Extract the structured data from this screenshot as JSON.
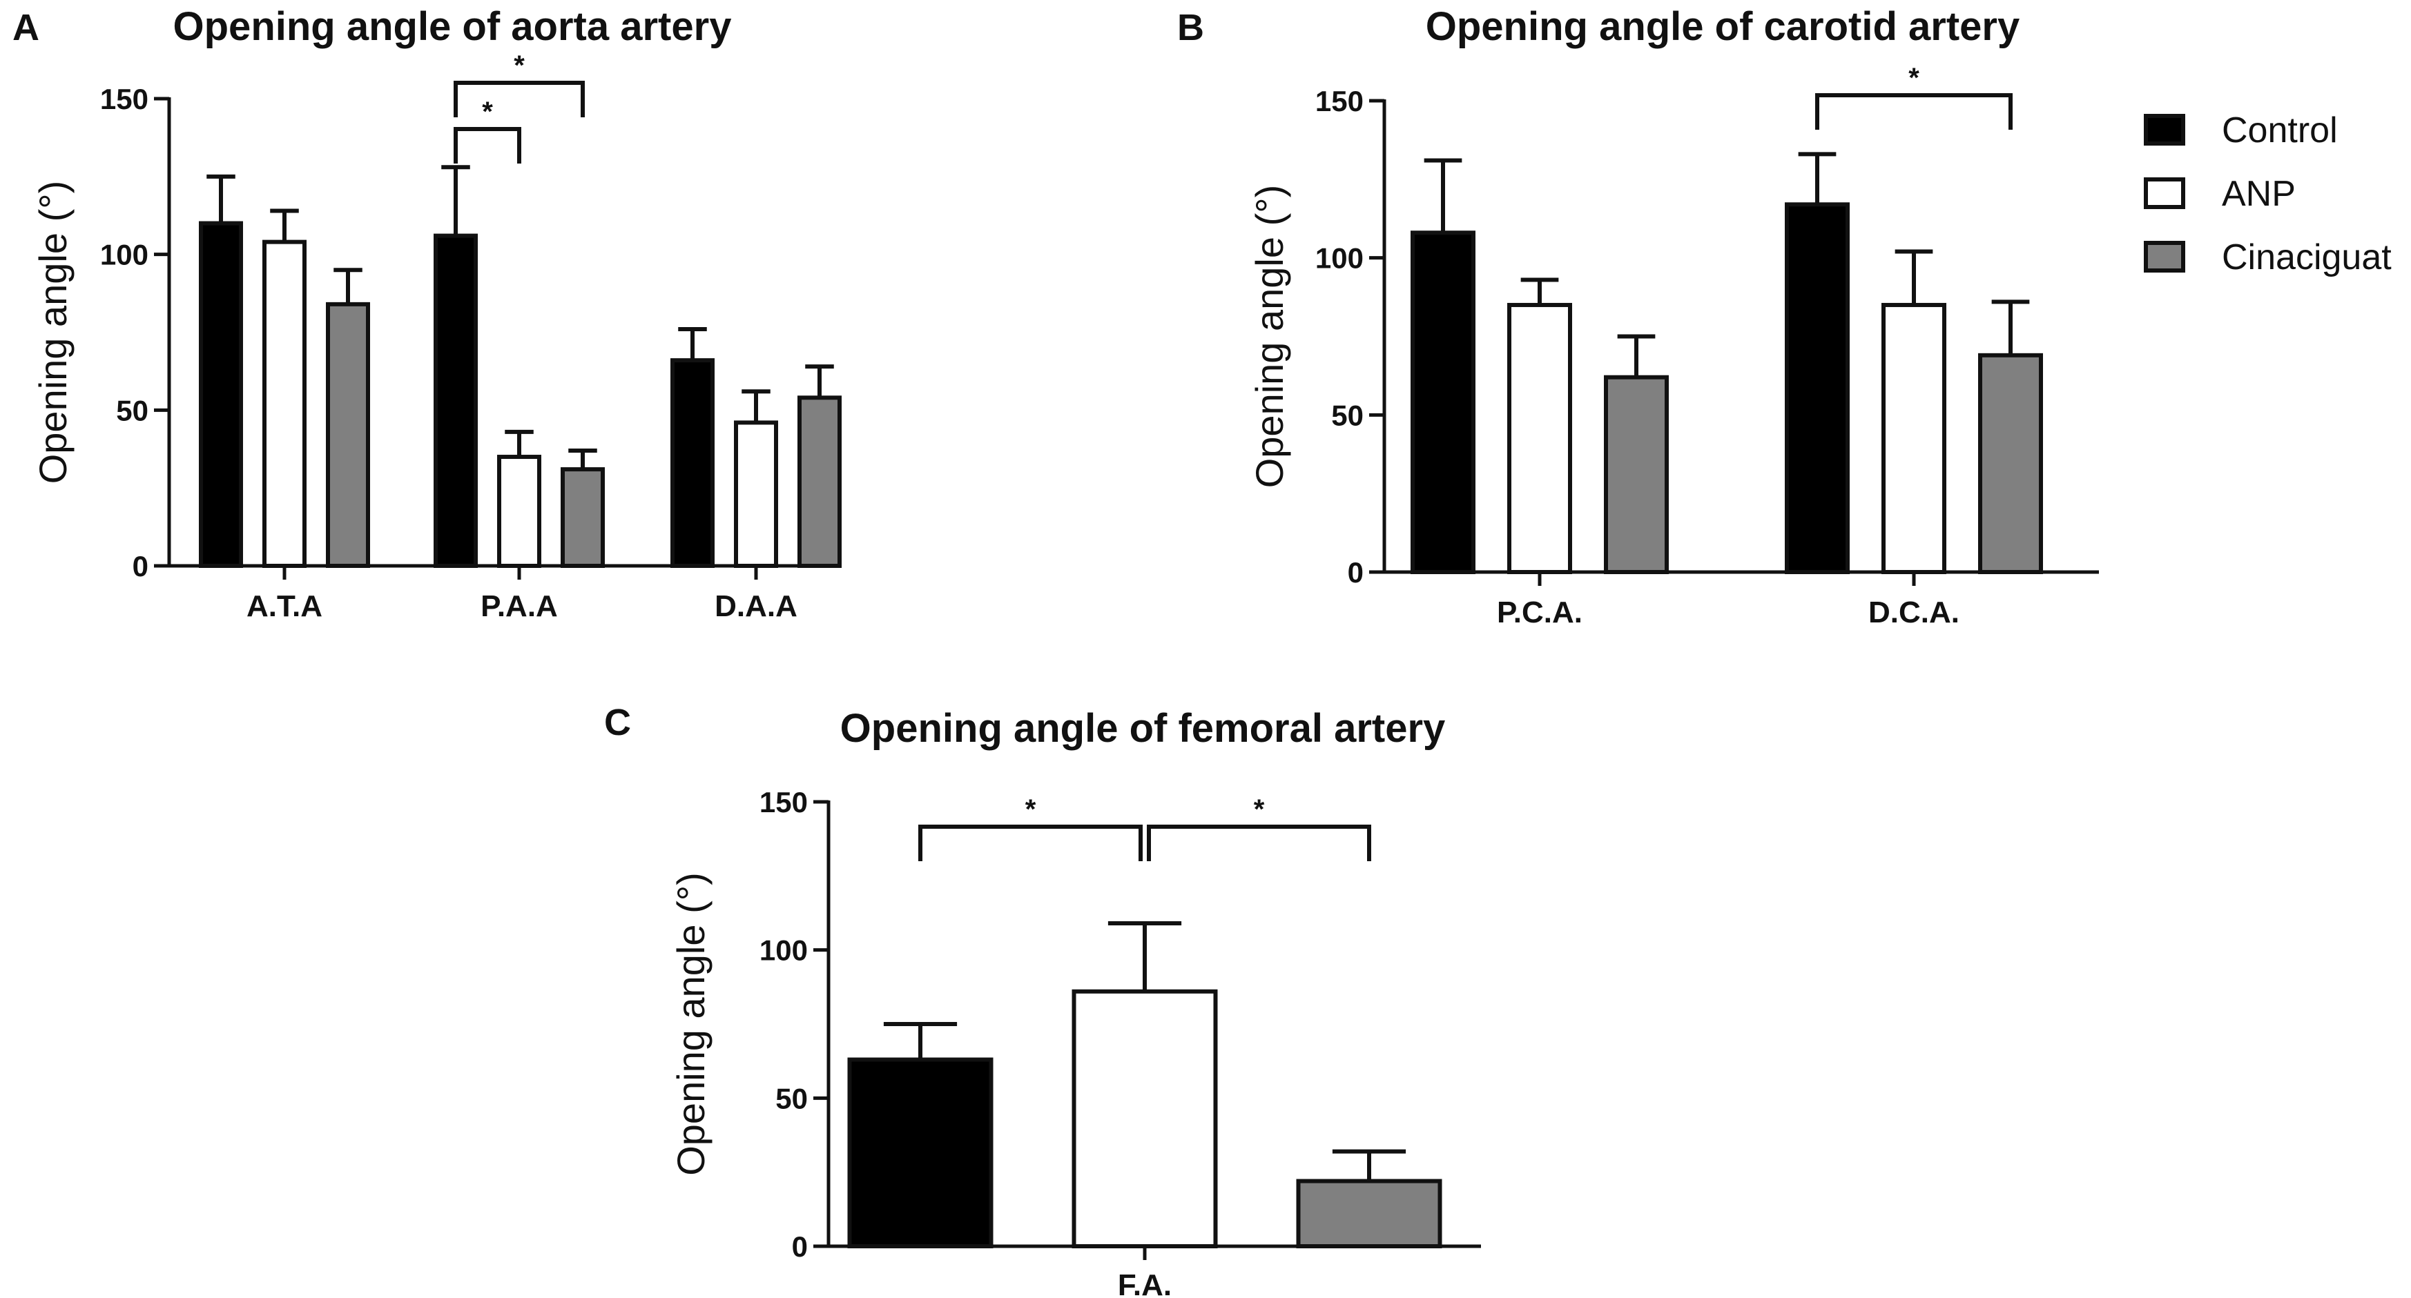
{
  "legend": [
    {
      "name": "Control",
      "color": "#000000"
    },
    {
      "name": "ANP",
      "color": "#ffffff"
    },
    {
      "name": "Cinaciguat",
      "color": "#808080"
    }
  ],
  "chart_data": [
    {
      "panel": "A",
      "type": "bar",
      "title": "Opening angle of aorta artery",
      "xlabel": "",
      "ylabel": "Opening angle (°)",
      "ylim": [
        0,
        150
      ],
      "yticks": [
        0,
        50,
        100,
        150
      ],
      "categories": [
        "A.T.A",
        "P.A.A",
        "D.A.A"
      ],
      "series": [
        {
          "name": "Control",
          "values": [
            110,
            106,
            66
          ],
          "errors": [
            15,
            22,
            10
          ]
        },
        {
          "name": "ANP",
          "values": [
            104,
            35,
            46
          ],
          "errors": [
            10,
            8,
            10
          ]
        },
        {
          "name": "Cinaciguat",
          "values": [
            84,
            31,
            54
          ],
          "errors": [
            11,
            6,
            10
          ]
        }
      ],
      "annotations": [
        {
          "category": 1,
          "from": 0,
          "to": 1,
          "label": "*",
          "level": 1
        },
        {
          "category": 1,
          "from": 0,
          "to": 2,
          "label": "*",
          "level": 2
        }
      ]
    },
    {
      "panel": "B",
      "type": "bar",
      "title": "Opening angle of carotid artery",
      "xlabel": "",
      "ylabel": "Opening angle (°)",
      "ylim": [
        0,
        150
      ],
      "yticks": [
        0,
        50,
        100,
        150
      ],
      "categories": [
        "P.C.A.",
        "D.C.A."
      ],
      "series": [
        {
          "name": "Control",
          "values": [
            108,
            117
          ],
          "errors": [
            23,
            16
          ]
        },
        {
          "name": "ANP",
          "values": [
            85,
            85
          ],
          "errors": [
            8,
            17
          ]
        },
        {
          "name": "Cinaciguat",
          "values": [
            62,
            69
          ],
          "errors": [
            13,
            17
          ]
        }
      ],
      "annotations": [
        {
          "category": 1,
          "from": 0,
          "to": 2,
          "label": "*",
          "level": 1
        }
      ]
    },
    {
      "panel": "C",
      "type": "bar",
      "title": "Opening angle of femoral artery",
      "xlabel": "",
      "ylabel": "Opening angle (°)",
      "ylim": [
        0,
        150
      ],
      "yticks": [
        0,
        50,
        100,
        150
      ],
      "categories": [
        "F.A."
      ],
      "series": [
        {
          "name": "Control",
          "values": [
            63
          ],
          "errors": [
            12
          ]
        },
        {
          "name": "ANP",
          "values": [
            86
          ],
          "errors": [
            23
          ]
        },
        {
          "name": "Cinaciguat",
          "values": [
            22
          ],
          "errors": [
            10
          ]
        }
      ],
      "annotations": [
        {
          "category": 0,
          "from": 0,
          "to": 1,
          "label": "*",
          "level": 1
        },
        {
          "category": 0,
          "from": 1,
          "to": 2,
          "label": "*",
          "level": 1
        }
      ]
    }
  ]
}
